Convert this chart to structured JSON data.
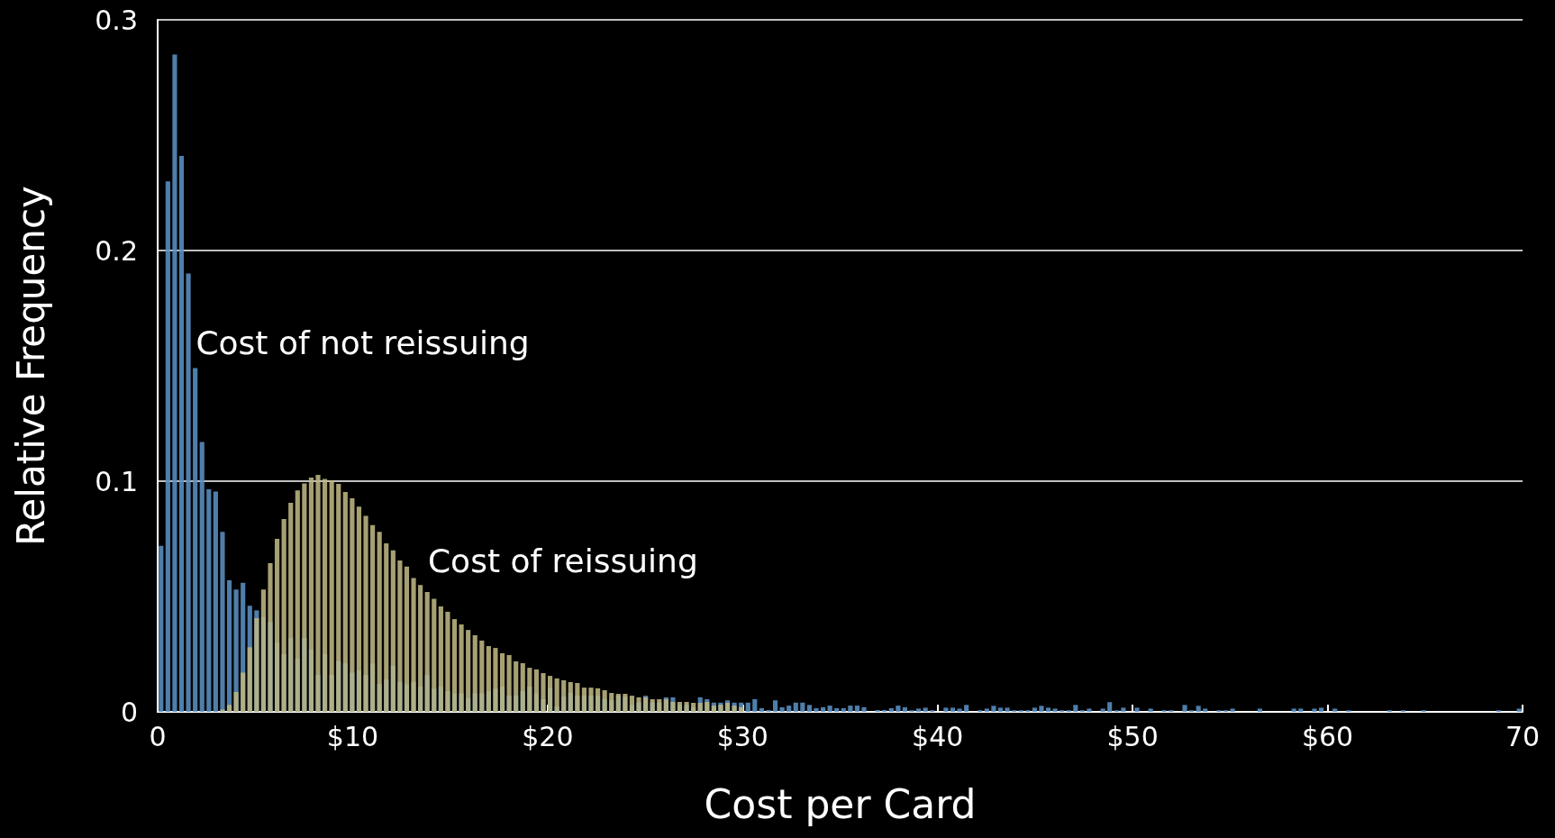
{
  "chart_data": {
    "type": "histogram",
    "xlabel": "Cost per Card",
    "ylabel": "Relative Frequency",
    "bins": [
      0,
      0.35,
      0.7,
      1.05,
      1.4,
      1.75,
      2.1,
      2.45,
      2.8,
      3.15,
      3.5,
      3.85,
      4.2,
      4.55,
      4.9,
      5.25,
      5.6,
      5.95,
      6.3,
      6.65,
      7,
      7.35,
      7.7,
      8.05,
      8.4,
      8.75,
      9.1,
      9.45,
      9.8,
      10.15,
      10.5,
      10.85,
      11.2,
      11.55,
      11.9,
      12.25,
      12.6,
      12.95,
      13.3,
      13.65,
      14,
      14.35,
      14.7,
      15.05,
      15.4,
      15.75,
      16.1,
      16.45,
      16.8,
      17.15,
      17.5,
      17.85,
      18.2,
      18.55,
      18.9,
      19.25,
      19.6,
      19.95,
      20.3,
      20.65,
      21,
      21.35,
      21.7,
      22.05,
      22.4,
      22.75,
      23.1,
      23.45,
      23.8,
      24.15,
      24.5,
      24.85,
      25.2,
      25.55,
      25.9,
      26.25,
      26.6,
      26.95,
      27.3,
      27.65,
      28,
      28.35,
      28.7,
      29.05,
      29.4,
      29.75,
      30.1,
      30.45,
      30.8,
      31.15,
      31.5,
      31.85,
      32.2,
      32.55,
      32.9,
      33.25,
      33.6,
      33.95,
      34.3,
      34.65,
      35,
      35.35,
      35.7,
      36.05,
      36.4,
      36.75,
      37.1,
      37.45,
      37.8,
      38.15,
      38.5,
      38.85,
      39.2,
      39.55,
      39.9,
      40.25,
      40.6,
      40.95,
      41.3,
      41.65,
      42,
      42.35,
      42.7,
      43.05,
      43.4,
      43.75,
      44.1,
      44.45,
      44.8,
      45.15,
      45.5,
      45.85,
      46.2,
      46.55,
      46.9,
      47.25,
      47.6,
      47.95,
      48.3,
      48.65,
      49,
      49.35,
      49.7,
      50.05,
      50.4,
      50.75,
      51.1,
      51.45,
      51.8,
      52.15,
      52.5,
      52.85,
      53.2,
      53.55,
      53.9,
      54.25,
      54.6,
      54.95,
      55.3,
      55.65,
      56,
      56.35,
      56.7,
      57.05,
      57.4,
      57.75,
      58.1,
      58.45,
      58.8,
      59.15,
      59.5,
      59.85,
      60.2,
      60.55,
      60.9,
      61.25,
      61.6,
      61.95,
      62.3,
      62.65,
      63,
      63.35,
      63.7,
      64.05,
      64.4,
      64.75,
      65.1,
      65.45,
      65.8,
      66.15,
      66.5,
      66.85,
      67.2,
      67.55,
      67.9,
      68.25,
      68.6,
      68.95,
      69.3,
      69.65,
      70
    ],
    "series": [
      {
        "name": "Cost of not reissuing",
        "color": "#5a8fc3",
        "values": [
          0.072,
          0.23,
          0.285,
          0.241,
          0.19,
          0.149,
          0.117,
          0.0965,
          0.0955,
          0.078,
          0.057,
          0.053,
          0.056,
          0.046,
          0.044,
          0.041,
          0.039,
          0.03,
          0.025,
          0.032,
          0.023,
          0.032,
          0.027,
          0.016,
          0.025,
          0.016,
          0.022,
          0.021,
          0.017,
          0.018,
          0.016,
          0.021,
          0.012,
          0.014,
          0.02,
          0.013,
          0.012,
          0.013,
          0.011,
          0.016,
          0.01,
          0.011,
          0.009,
          0.008,
          0.008,
          0.006,
          0.008,
          0.008,
          0.009,
          0.01,
          0.011,
          0.007,
          0.007,
          0.009,
          0.011,
          0.008,
          0.0055,
          0.0105,
          0.0023,
          0.0066,
          0.0082,
          0.007,
          0.007,
          0.007,
          0.007,
          0.0055,
          0.005,
          0.007,
          0.0066,
          0.003,
          0.004,
          0.007,
          0.004,
          0.004,
          0.0063,
          0.0063,
          0.003,
          0.003,
          0.002,
          0.0063,
          0.0055,
          0.004,
          0.004,
          0.005,
          0.004,
          0.004,
          0.004,
          0.0055,
          0.0016,
          0.0008,
          0.005,
          0.002,
          0.0027,
          0.004,
          0.004,
          0.003,
          0.0016,
          0.002,
          0.0027,
          0.0016,
          0.0016,
          0.0027,
          0.0027,
          0.002,
          0,
          0.0008,
          0.0008,
          0.0016,
          0.0027,
          0.002,
          0.0007,
          0.0014,
          0.0018,
          0.0007,
          0,
          0.0018,
          0.0018,
          0.0014,
          0.003,
          0,
          0.0007,
          0.0014,
          0.0026,
          0.0018,
          0.0018,
          0.0007,
          0.0007,
          0.0007,
          0.0018,
          0.0026,
          0.0018,
          0.0014,
          0.0007,
          0.0007,
          0.003,
          0.0007,
          0.0014,
          0,
          0.0014,
          0.0042,
          0.0007,
          0.0018,
          0,
          0.0018,
          0,
          0.0014,
          0,
          0.0007,
          0.0007,
          0,
          0.003,
          0.0007,
          0.0026,
          0.0014,
          0,
          0.0007,
          0.0007,
          0.0014,
          0,
          0,
          0,
          0.0014,
          0,
          0,
          0,
          0,
          0.0014,
          0.0014,
          0,
          0.0014,
          0.0018,
          0,
          0.0014,
          0,
          0.0007,
          0,
          0,
          0,
          0,
          0,
          0.0007,
          0,
          0.0007,
          0,
          0,
          0.0007,
          0,
          0,
          0,
          0,
          0,
          0,
          0,
          0,
          0,
          0,
          0.0007,
          0,
          0,
          0.0014
        ]
      },
      {
        "name": "Cost of reissuing",
        "color": "#bdb683",
        "values": [
          0,
          0,
          0,
          0,
          0,
          0,
          0,
          0,
          0,
          0.001,
          0.003,
          0.0086,
          0.017,
          0.028,
          0.0406,
          0.053,
          0.0645,
          0.075,
          0.0836,
          0.0906,
          0.096,
          0.099,
          0.1016,
          0.1027,
          0.101,
          0.1003,
          0.0988,
          0.0953,
          0.0926,
          0.089,
          0.085,
          0.081,
          0.078,
          0.073,
          0.07,
          0.0656,
          0.063,
          0.058,
          0.055,
          0.052,
          0.049,
          0.0457,
          0.0434,
          0.0402,
          0.0379,
          0.0355,
          0.0332,
          0.0309,
          0.0285,
          0.0277,
          0.0254,
          0.0246,
          0.0219,
          0.0211,
          0.0191,
          0.0184,
          0.0168,
          0.0156,
          0.0145,
          0.0137,
          0.0129,
          0.0125,
          0.0105,
          0.0105,
          0.0102,
          0.0094,
          0.0082,
          0.0078,
          0.0078,
          0.007,
          0.0063,
          0.0063,
          0.0055,
          0.0055,
          0.0055,
          0.0043,
          0.0043,
          0.0043,
          0.0039,
          0.0039,
          0.0043,
          0.0027,
          0.0031,
          0.0039,
          0.0027,
          0.002,
          0,
          0,
          0,
          0,
          0,
          0,
          0,
          0,
          0,
          0,
          0,
          0,
          0,
          0,
          0,
          0,
          0,
          0,
          0,
          0,
          0,
          0,
          0,
          0,
          0,
          0,
          0,
          0,
          0,
          0,
          0,
          0,
          0,
          0,
          0,
          0,
          0,
          0,
          0,
          0,
          0,
          0,
          0,
          0,
          0,
          0,
          0,
          0,
          0,
          0,
          0,
          0,
          0,
          0,
          0,
          0,
          0,
          0,
          0,
          0,
          0,
          0,
          0,
          0,
          0,
          0,
          0,
          0,
          0,
          0,
          0,
          0,
          0,
          0,
          0,
          0,
          0,
          0,
          0,
          0,
          0,
          0,
          0,
          0,
          0,
          0,
          0,
          0,
          0,
          0,
          0,
          0,
          0,
          0,
          0,
          0,
          0,
          0,
          0,
          0,
          0,
          0,
          0,
          0,
          0,
          0,
          0,
          0,
          0,
          0,
          0,
          0,
          0,
          0
        ]
      }
    ],
    "xlim": [
      0,
      70
    ],
    "xticks": [
      0,
      {
        "value": 10,
        "label": "$10"
      },
      {
        "value": 20,
        "label": "$20"
      },
      {
        "value": 30,
        "label": "$30"
      },
      {
        "value": 40,
        "label": "$40"
      },
      {
        "value": 50,
        "label": "$50"
      },
      {
        "value": 60,
        "label": "$60"
      },
      70
    ],
    "ylim": [
      0,
      0.3
    ],
    "yticks": [
      0,
      0.1,
      0.2,
      0.3
    ],
    "grid": "y"
  }
}
